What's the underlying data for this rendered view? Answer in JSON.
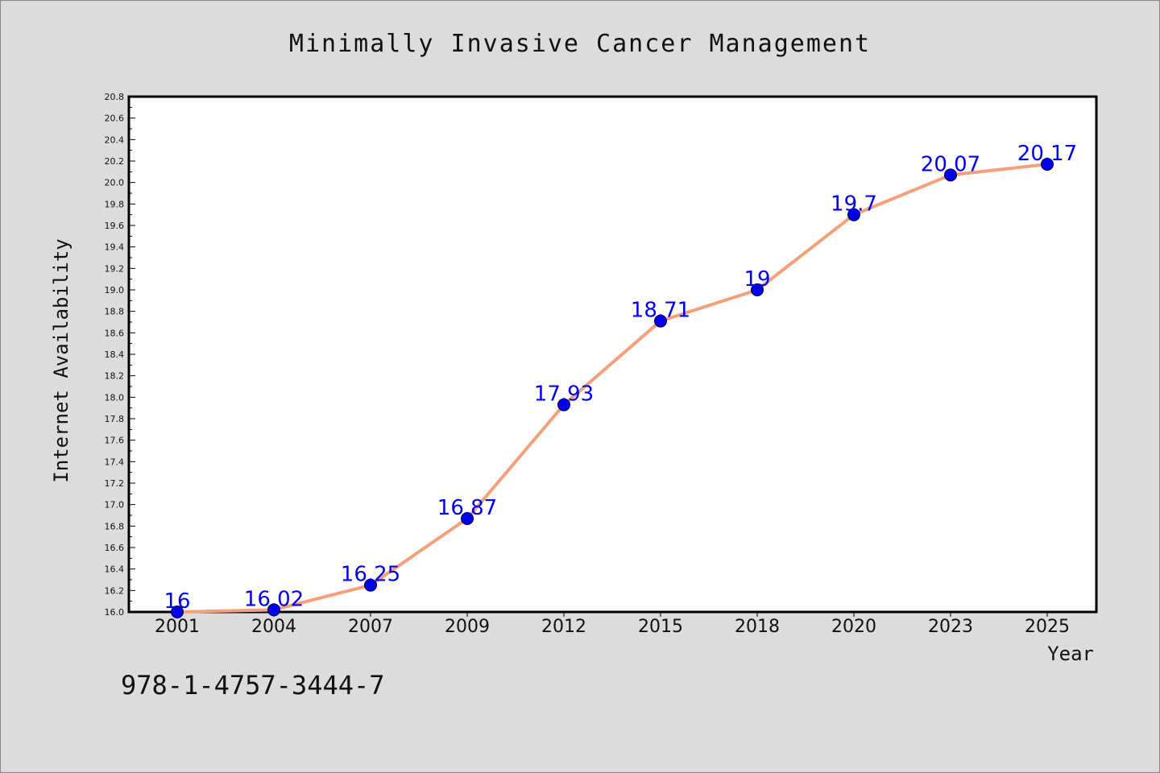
{
  "chart_data": {
    "type": "line",
    "title": "Minimally Invasive Cancer Management",
    "xlabel": "Year",
    "ylabel": "Internet Availability",
    "categories": [
      "2001",
      "2004",
      "2007",
      "2009",
      "2012",
      "2015",
      "2018",
      "2020",
      "2023",
      "2025"
    ],
    "series": [
      {
        "values": [
          16,
          16.02,
          16.25,
          16.87,
          17.93,
          18.71,
          19,
          19.7,
          20.07,
          20.17
        ],
        "data_labels": [
          "16",
          "16.02",
          "16.25",
          "16.87",
          "17.93",
          "18.71",
          "19",
          "19.7",
          "20.07",
          "20.17"
        ]
      }
    ],
    "ylim": [
      16.0,
      20.8
    ],
    "yticks": [
      "16.0",
      "16.2",
      "16.4",
      "16.6",
      "16.8",
      "17.0",
      "17.2",
      "17.4",
      "17.6",
      "17.8",
      "18.0",
      "18.2",
      "18.4",
      "18.6",
      "18.8",
      "19.0",
      "19.2",
      "19.4",
      "19.6",
      "19.8",
      "20.0",
      "20.2",
      "20.4",
      "20.6",
      "20.8"
    ],
    "grid": false,
    "legend": "none",
    "colors": {
      "line": "#f4a07a",
      "marker": "#0000ee",
      "marker_edge": "#000033",
      "label": "#0000ee",
      "plot_bg": "#ffffff",
      "figure_bg": "#dcdcdc"
    }
  },
  "footer": {
    "code": "978-1-4757-3444-7"
  }
}
